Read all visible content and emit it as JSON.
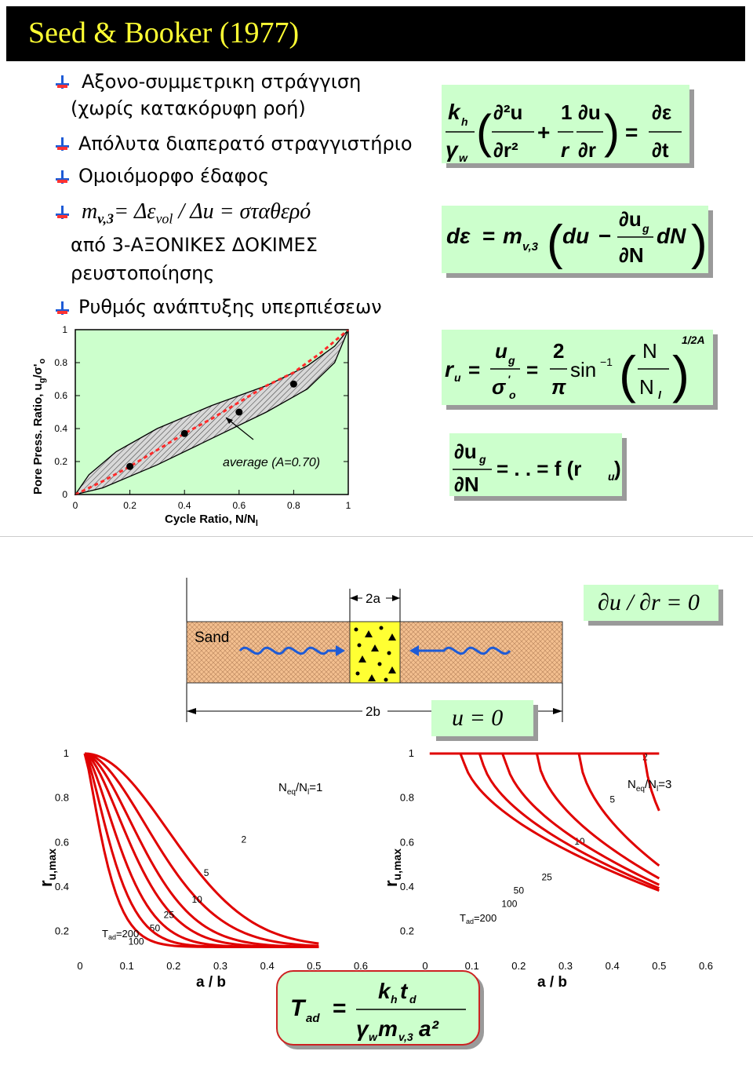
{
  "title": "Seed & Booker (1977)",
  "bullets": {
    "b1_line1": "Αξονο-συμμετρικη στράγγιση",
    "b1_line2": "(χωρίς κατακόρυφη ροή)",
    "b2": "Απόλυτα διαπερατό στραγγιστήριο",
    "b3": "Ομοιόμορφο έδαφος",
    "b4_m": "m",
    "b4_sub": "v,3",
    "b4_mid": "= Δε",
    "b4_sub2": "vol",
    "b4_end": " / Δu = σταθερό",
    "b4_line2": "από 3-ΑΞΟΝΙΚΕΣ ΔΟΚΙΜΕΣ",
    "b4_line3": "ρευστοποίησης",
    "b5": "Ρυθμός ανάπτυξης υπερπιέσεων"
  },
  "chart_data": [
    {
      "type": "area",
      "ylabel": "Pore Press. Ratio, ug/σ'o",
      "ylabel_main": "Pore Press. Ratio, u",
      "ylabel_sub": "g",
      "ylabel_end": "/σ'",
      "ylabel_sub2": "o",
      "xlabel": "Cycle Ratio, N/Nl",
      "xlabel_main": "Cycle Ratio, N/N",
      "xlabel_sub": "l",
      "xlim": [
        0,
        1
      ],
      "ylim": [
        0,
        1
      ],
      "xticks": [
        "0",
        "0.2",
        "0.4",
        "0.6",
        "0.8",
        "1"
      ],
      "yticks": [
        "0",
        "0.2",
        "0.4",
        "0.6",
        "0.8",
        "1"
      ],
      "annotation": "average (A=0.70)",
      "band_upper": [
        [
          0,
          0
        ],
        [
          0.05,
          0.12
        ],
        [
          0.15,
          0.26
        ],
        [
          0.3,
          0.4
        ],
        [
          0.5,
          0.54
        ],
        [
          0.7,
          0.66
        ],
        [
          0.85,
          0.78
        ],
        [
          0.95,
          0.9
        ],
        [
          1,
          1
        ]
      ],
      "band_lower": [
        [
          0,
          0
        ],
        [
          0.1,
          0.04
        ],
        [
          0.3,
          0.18
        ],
        [
          0.5,
          0.34
        ],
        [
          0.7,
          0.5
        ],
        [
          0.85,
          0.64
        ],
        [
          0.95,
          0.8
        ],
        [
          1,
          1
        ]
      ],
      "average": [
        [
          0,
          0
        ],
        [
          0.1,
          0.08
        ],
        [
          0.2,
          0.17
        ],
        [
          0.3,
          0.27
        ],
        [
          0.4,
          0.37
        ],
        [
          0.5,
          0.46
        ],
        [
          0.6,
          0.56
        ],
        [
          0.7,
          0.66
        ],
        [
          0.8,
          0.74
        ],
        [
          0.9,
          0.86
        ],
        [
          1,
          1
        ]
      ],
      "points": [
        [
          0.2,
          0.17
        ],
        [
          0.4,
          0.37
        ],
        [
          0.6,
          0.5
        ],
        [
          0.8,
          0.67
        ]
      ]
    },
    {
      "type": "line",
      "ylabel": "ru,max",
      "ylabel_main": "r",
      "ylabel_sub": "u,max",
      "xlabel": "a / b",
      "xlim": [
        0,
        0.6
      ],
      "ylim": [
        0.1,
        1
      ],
      "xticks": [
        "0",
        "0.1",
        "0.2",
        "0.3",
        "0.4",
        "0.5",
        "0.6"
      ],
      "yticks": [
        "0.2",
        "0.4",
        "0.6",
        "0.8",
        "1"
      ],
      "legend_main": "N",
      "legend_sub1": "eq",
      "legend_mid": "/N",
      "legend_sub2": "l",
      "legend_end": "=1",
      "tad_main": "T",
      "tad_sub": "ad",
      "tad_end": "=200",
      "series": [
        {
          "label": "2",
          "decay": 0.25,
          "power": 2.0
        },
        {
          "label": "5",
          "decay": 0.2,
          "power": 1.8
        },
        {
          "label": "10",
          "decay": 0.16,
          "power": 1.7
        },
        {
          "label": "25",
          "decay": 0.13,
          "power": 1.6
        },
        {
          "label": "50",
          "decay": 0.1,
          "power": 1.5
        },
        {
          "label": "100",
          "decay": 0.075,
          "power": 1.4
        },
        {
          "label": "200",
          "decay": 0.055,
          "power": 1.3
        }
      ]
    },
    {
      "type": "line",
      "ylabel": "ru,max",
      "ylabel_main": "r",
      "ylabel_sub": "u,max",
      "xlabel": "a / b",
      "xlim": [
        0,
        0.6
      ],
      "ylim": [
        0.1,
        1
      ],
      "xticks": [
        "0",
        "0.1",
        "0.2",
        "0.3",
        "0.4",
        "0.5",
        "0.6"
      ],
      "yticks": [
        "0.2",
        "0.4",
        "0.6",
        "0.8",
        "1"
      ],
      "legend_main": "N",
      "legend_sub1": "eq",
      "legend_mid": "/N",
      "legend_sub2": "l",
      "legend_end": "=3",
      "tad_main": "T",
      "tad_sub": "ad",
      "tad_end": "=200",
      "series": [
        {
          "label": "2",
          "flat_until": 0.6
        },
        {
          "label": "5",
          "flat_until": 0.47
        },
        {
          "label": "10",
          "flat_until": 0.33
        },
        {
          "label": "25",
          "flat_until": 0.24
        },
        {
          "label": "50",
          "flat_until": 0.17
        },
        {
          "label": "100",
          "flat_until": 0.12
        },
        {
          "label": "200",
          "flat_until": 0.08
        }
      ]
    }
  ],
  "schematic": {
    "sand_label": "Sand",
    "a_label": "2a",
    "b_label": "2b",
    "bc_outer": "∂u / ∂r = 0",
    "bc_drain": "u = 0"
  },
  "equations": {
    "eq1": {
      "k": "k",
      "h": "h",
      "gamma": "γ",
      "w": "w",
      "d2u": "∂²u",
      "dr2": "∂r²",
      "plus": "+",
      "one": "1",
      "r": "r",
      "du": "∂u",
      "dr": "∂r",
      "eq": "=",
      "deps": "∂ε",
      "dt": "∂t"
    },
    "eq2": {
      "deps": "dε",
      "eq": "=",
      "m": "m",
      "v3": "v,3",
      "du": "du",
      "minus": "−",
      "dug": "∂u",
      "g": "g",
      "dN": "∂N",
      "dn": "dN"
    },
    "eq3": {
      "r": "r",
      "u": "u",
      "eq": "=",
      "ug": "u",
      "g": "g",
      "sig": "σ",
      "prime": "'",
      "o": "o",
      "two": "2",
      "pi": "π",
      "sin": "sin",
      "m1": "−1",
      "N": "N",
      "Nl": "N",
      "l": "l",
      "exp": "1/2A"
    },
    "eq4": {
      "dug": "∂u",
      "g": "g",
      "dN": "∂N",
      "rest": "= .   . = f (r",
      "u": "u",
      "close": ")"
    },
    "eq5": {
      "T": "T",
      "ad": "ad",
      "eq": "=",
      "k": "k",
      "h": "h",
      "t": "t",
      "d": "d",
      "gamma": "γ",
      "w": "w",
      "m": "m",
      "v3": "v,3",
      "a2": "a²"
    }
  }
}
